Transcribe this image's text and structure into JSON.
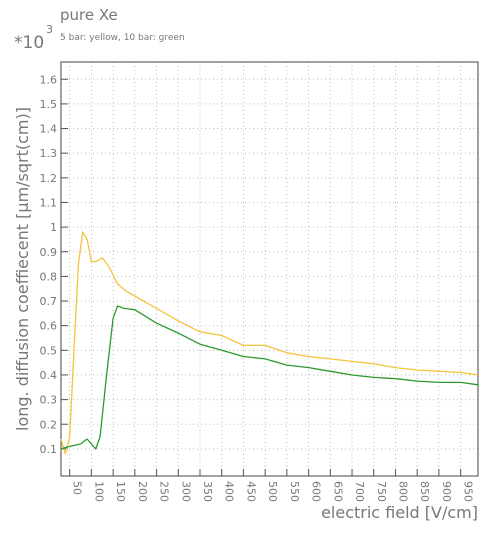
{
  "chart_data": {
    "type": "line",
    "title": "pure Xe",
    "subtitle": "5 bar: yellow, 10 bar: green",
    "y_multiplier": "*10",
    "y_exponent": "3",
    "x_label": "electric field [V/cm]",
    "y_label": "long. diffusion coeffiecent [μm/sqrt(cm)]",
    "xlim": [
      30,
      990
    ],
    "ylim": [
      -0.01,
      1.67
    ],
    "xticks": [
      50,
      100,
      150,
      200,
      250,
      300,
      350,
      400,
      450,
      500,
      550,
      600,
      650,
      700,
      750,
      800,
      850,
      900,
      950
    ],
    "yticks": [
      0.1,
      0.2,
      0.3,
      0.4,
      0.5,
      0.6,
      0.7,
      0.8,
      0.9,
      1,
      1.1,
      1.2,
      1.3,
      1.4,
      1.5,
      1.6
    ],
    "grid": true,
    "series": [
      {
        "color": "#f5c33b",
        "x": [
          30,
          40,
          50,
          60,
          70,
          80,
          90,
          100,
          110,
          125,
          140,
          160,
          180,
          200,
          250,
          300,
          350,
          400,
          450,
          500,
          550,
          600,
          650,
          700,
          750,
          800,
          850,
          900,
          950,
          990
        ],
        "values": [
          0.14,
          0.08,
          0.15,
          0.5,
          0.85,
          0.98,
          0.95,
          0.86,
          0.86,
          0.875,
          0.84,
          0.77,
          0.74,
          0.72,
          0.67,
          0.62,
          0.575,
          0.56,
          0.52,
          0.52,
          0.49,
          0.475,
          0.465,
          0.455,
          0.445,
          0.43,
          0.42,
          0.415,
          0.41,
          0.4
        ]
      },
      {
        "color": "#2a9a2a",
        "x": [
          30,
          50,
          75,
          90,
          100,
          110,
          120,
          135,
          150,
          160,
          175,
          200,
          250,
          300,
          350,
          400,
          450,
          500,
          550,
          600,
          650,
          700,
          750,
          800,
          850,
          900,
          950,
          990
        ],
        "values": [
          0.1,
          0.11,
          0.12,
          0.14,
          0.12,
          0.1,
          0.15,
          0.4,
          0.63,
          0.68,
          0.67,
          0.665,
          0.61,
          0.57,
          0.525,
          0.5,
          0.475,
          0.465,
          0.44,
          0.43,
          0.415,
          0.4,
          0.39,
          0.385,
          0.375,
          0.37,
          0.37,
          0.36
        ]
      }
    ]
  }
}
